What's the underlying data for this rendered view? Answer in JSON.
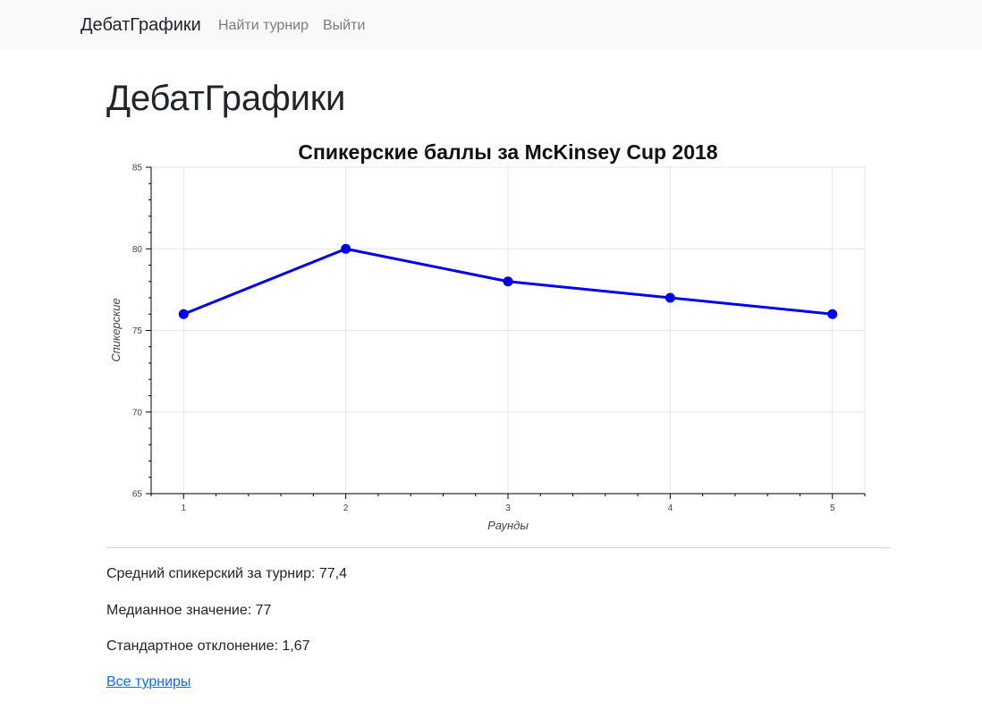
{
  "navbar": {
    "brand": "ДебатГрафики",
    "links": [
      {
        "label": "Найти турнир"
      },
      {
        "label": "Выйти"
      }
    ]
  },
  "page": {
    "title": "ДебатГрафики"
  },
  "chart_data": {
    "type": "line",
    "title": "Спикерские баллы за McKinsey Cup 2018",
    "xlabel": "Раунды",
    "ylabel": "Спикерские",
    "x": [
      1,
      2,
      3,
      4,
      5
    ],
    "series": [
      {
        "values": [
          76,
          80,
          78,
          77,
          76
        ],
        "color": "#0000ee"
      }
    ],
    "xlim": [
      0.8,
      5.2
    ],
    "ylim": [
      65,
      85
    ],
    "xticks": [
      1,
      2,
      3,
      4,
      5
    ],
    "yticks": [
      65,
      70,
      75,
      80,
      85
    ],
    "grid": true
  },
  "stats": {
    "mean": "Средний спикерский за турнир: 77,4",
    "median": "Медианное значение: 77",
    "std": "Стандартное отклонение: 1,67"
  },
  "links": {
    "all_tournaments": "Все турниры"
  }
}
